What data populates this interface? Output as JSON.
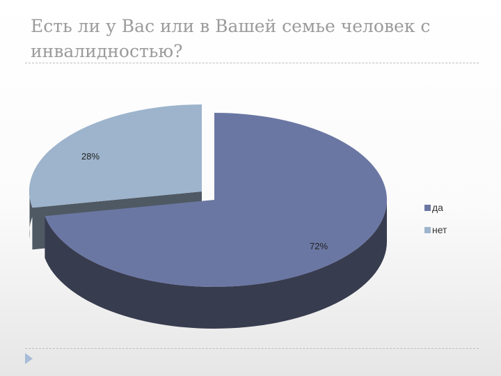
{
  "title": "Есть ли у Вас или в Вашей семье человек с инвалидностью?",
  "chart_data": {
    "type": "pie",
    "categories": [
      "да",
      "нет"
    ],
    "values": [
      72,
      28
    ],
    "data_labels": [
      "72%",
      "28%"
    ],
    "legend_position": "right",
    "three_d": true,
    "exploded": true,
    "colors": {
      "да": "#6b77a3",
      "да_side": "#383c4f",
      "нет": "#9db4cc",
      "нет_side": "#4f5964"
    }
  }
}
